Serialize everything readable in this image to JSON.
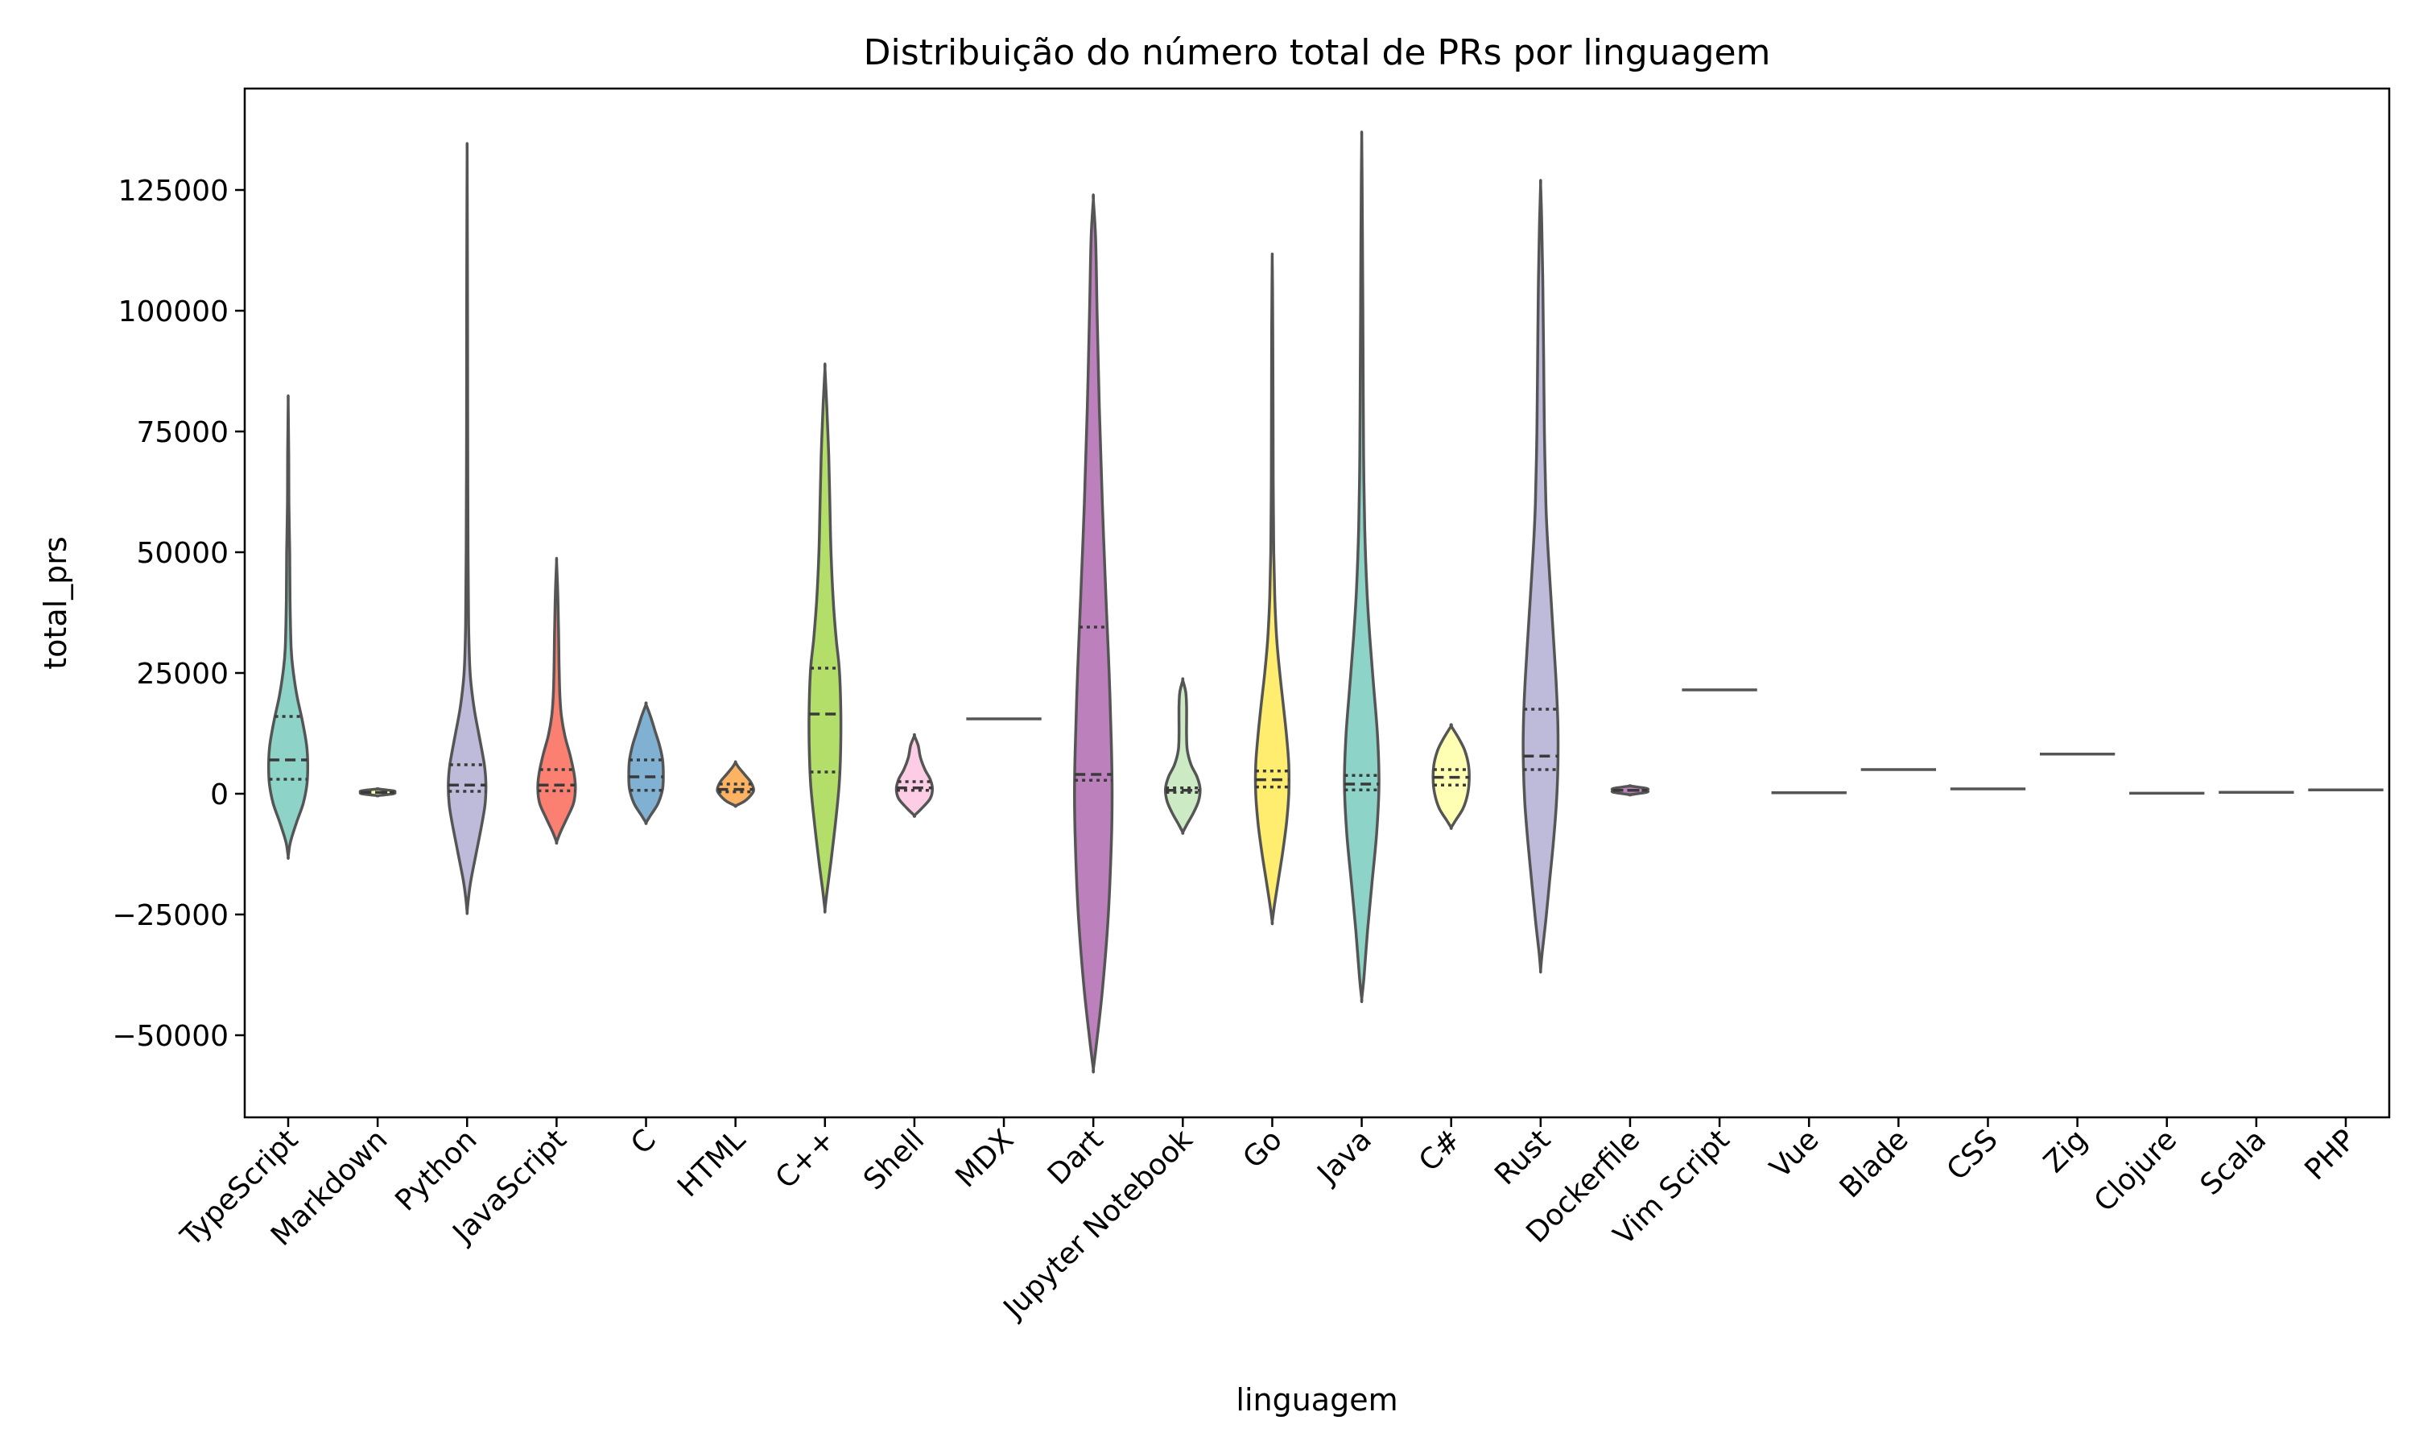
{
  "chart_data": {
    "type": "violin",
    "title": "Distribuição do número total de PRs por linguagem",
    "xlabel": "linguagem",
    "ylabel": "total_prs",
    "ylim": [
      -67000,
      146000
    ],
    "yticks": [
      -50000,
      -25000,
      0,
      25000,
      50000,
      75000,
      100000,
      125000
    ],
    "ytick_labels": [
      "−50000",
      "−25000",
      "0",
      "25000",
      "50000",
      "75000",
      "100000",
      "125000"
    ],
    "grid": false,
    "legend": "none",
    "categories": [
      "TypeScript",
      "Markdown",
      "Python",
      "JavaScript",
      "C",
      "HTML",
      "C++",
      "Shell",
      "MDX",
      "Dart",
      "Jupyter Notebook",
      "Go",
      "Java",
      "C#",
      "Rust",
      "Dockerfile",
      "Vim Script",
      "Vue",
      "Blade",
      "CSS",
      "Zig",
      "Clojure",
      "Scala",
      "PHP"
    ],
    "violins": [
      {
        "category": "TypeScript",
        "color": "#8dd3c7",
        "q1": 3000,
        "median": 7000,
        "q3": 16000,
        "profile": [
          [
            -13000,
            0
          ],
          [
            -10000,
            0.06
          ],
          [
            -6000,
            0.22
          ],
          [
            -2000,
            0.4
          ],
          [
            2000,
            0.5
          ],
          [
            6000,
            0.52
          ],
          [
            10000,
            0.49
          ],
          [
            15000,
            0.38
          ],
          [
            20000,
            0.24
          ],
          [
            25000,
            0.14
          ],
          [
            30000,
            0.08
          ],
          [
            40000,
            0.05
          ],
          [
            50000,
            0.04
          ],
          [
            60000,
            0.02
          ],
          [
            70000,
            0.015
          ],
          [
            81000,
            0
          ]
        ]
      },
      {
        "category": "Markdown",
        "color": "#ffffb3",
        "q1": 300,
        "median": 300,
        "q3": 300,
        "profile": [
          [
            -400,
            0
          ],
          [
            0,
            0.42
          ],
          [
            300,
            0.45
          ],
          [
            600,
            0.42
          ],
          [
            1000,
            0
          ]
        ]
      },
      {
        "category": "Python",
        "color": "#bebada",
        "q1": 500,
        "median": 1800,
        "q3": 6000,
        "profile": [
          [
            -24500,
            0
          ],
          [
            -22000,
            0.03
          ],
          [
            -18000,
            0.1
          ],
          [
            -12000,
            0.25
          ],
          [
            -6000,
            0.4
          ],
          [
            -2000,
            0.48
          ],
          [
            2000,
            0.5
          ],
          [
            6000,
            0.46
          ],
          [
            12000,
            0.32
          ],
          [
            18000,
            0.18
          ],
          [
            25000,
            0.08
          ],
          [
            35000,
            0.04
          ],
          [
            50000,
            0.025
          ],
          [
            75000,
            0.015
          ],
          [
            100000,
            0.012
          ],
          [
            120000,
            0.006
          ],
          [
            133000,
            0
          ]
        ]
      },
      {
        "category": "JavaScript",
        "color": "#fb8072",
        "q1": 600,
        "median": 1800,
        "q3": 5000,
        "profile": [
          [
            -10000,
            0
          ],
          [
            -8000,
            0.1
          ],
          [
            -5000,
            0.28
          ],
          [
            -2000,
            0.45
          ],
          [
            1000,
            0.5
          ],
          [
            4000,
            0.47
          ],
          [
            8000,
            0.36
          ],
          [
            12000,
            0.22
          ],
          [
            16000,
            0.13
          ],
          [
            20000,
            0.09
          ],
          [
            25000,
            0.07
          ],
          [
            30000,
            0.06
          ],
          [
            35000,
            0.05
          ],
          [
            42000,
            0.03
          ],
          [
            48000,
            0
          ]
        ]
      },
      {
        "category": "C",
        "color": "#80b1d3",
        "q1": 700,
        "median": 3500,
        "q3": 7000,
        "profile": [
          [
            -6000,
            0
          ],
          [
            -4500,
            0.12
          ],
          [
            -2000,
            0.32
          ],
          [
            1000,
            0.44
          ],
          [
            4000,
            0.46
          ],
          [
            7000,
            0.44
          ],
          [
            10000,
            0.36
          ],
          [
            13000,
            0.24
          ],
          [
            16000,
            0.12
          ],
          [
            18500,
            0
          ]
        ]
      },
      {
        "category": "HTML",
        "color": "#fdb462",
        "q1": 400,
        "median": 900,
        "q3": 2000,
        "profile": [
          [
            -2500,
            0
          ],
          [
            -1500,
            0.25
          ],
          [
            0,
            0.44
          ],
          [
            1000,
            0.48
          ],
          [
            2500,
            0.4
          ],
          [
            4000,
            0.24
          ],
          [
            5500,
            0.08
          ],
          [
            6500,
            0
          ]
        ]
      },
      {
        "category": "C++",
        "color": "#b3de69",
        "q1": 4500,
        "median": 16500,
        "q3": 26000,
        "profile": [
          [
            -24000,
            0
          ],
          [
            -20000,
            0.06
          ],
          [
            -14000,
            0.16
          ],
          [
            -6000,
            0.28
          ],
          [
            2000,
            0.38
          ],
          [
            10000,
            0.42
          ],
          [
            18000,
            0.42
          ],
          [
            26000,
            0.38
          ],
          [
            32000,
            0.3
          ],
          [
            40000,
            0.22
          ],
          [
            50000,
            0.16
          ],
          [
            60000,
            0.13
          ],
          [
            70000,
            0.1
          ],
          [
            80000,
            0.05
          ],
          [
            88000,
            0
          ]
        ]
      },
      {
        "category": "Shell",
        "color": "#fccde5",
        "q1": 700,
        "median": 1200,
        "q3": 2500,
        "profile": [
          [
            -4500,
            0
          ],
          [
            -3000,
            0.2
          ],
          [
            -1000,
            0.42
          ],
          [
            1000,
            0.48
          ],
          [
            3000,
            0.42
          ],
          [
            5000,
            0.28
          ],
          [
            7500,
            0.16
          ],
          [
            10000,
            0.1
          ],
          [
            12000,
            0
          ]
        ]
      },
      {
        "category": "MDX",
        "color": "#d9d9d9",
        "q1": 15500,
        "median": 15500,
        "q3": 15500,
        "profile": []
      },
      {
        "category": "Dart",
        "color": "#bc80bd",
        "q1": 2800,
        "median": 4000,
        "q3": 34500,
        "profile": [
          [
            -57000,
            0
          ],
          [
            -52000,
            0.08
          ],
          [
            -40000,
            0.25
          ],
          [
            -25000,
            0.4
          ],
          [
            -10000,
            0.48
          ],
          [
            0,
            0.5
          ],
          [
            10000,
            0.48
          ],
          [
            25000,
            0.42
          ],
          [
            40000,
            0.34
          ],
          [
            60000,
            0.24
          ],
          [
            80000,
            0.16
          ],
          [
            100000,
            0.1
          ],
          [
            115000,
            0.06
          ],
          [
            123000,
            0
          ]
        ]
      },
      {
        "category": "Jupyter Notebook",
        "color": "#ccebc5",
        "q1": 300,
        "median": 700,
        "q3": 1200,
        "profile": [
          [
            -8000,
            0
          ],
          [
            -6500,
            0.1
          ],
          [
            -4000,
            0.28
          ],
          [
            -1500,
            0.42
          ],
          [
            1000,
            0.46
          ],
          [
            3500,
            0.38
          ],
          [
            6000,
            0.22
          ],
          [
            9000,
            0.12
          ],
          [
            12000,
            0.1
          ],
          [
            15000,
            0.1
          ],
          [
            18000,
            0.1
          ],
          [
            21000,
            0.08
          ],
          [
            23500,
            0
          ]
        ]
      },
      {
        "category": "Go",
        "color": "#ffed6f",
        "q1": 1400,
        "median": 2900,
        "q3": 4700,
        "profile": [
          [
            -26500,
            0
          ],
          [
            -23000,
            0.06
          ],
          [
            -18000,
            0.16
          ],
          [
            -12000,
            0.28
          ],
          [
            -6000,
            0.38
          ],
          [
            0,
            0.44
          ],
          [
            6000,
            0.44
          ],
          [
            12000,
            0.38
          ],
          [
            18000,
            0.3
          ],
          [
            25000,
            0.2
          ],
          [
            32000,
            0.12
          ],
          [
            40000,
            0.07
          ],
          [
            50000,
            0.04
          ],
          [
            65000,
            0.025
          ],
          [
            80000,
            0.02
          ],
          [
            95000,
            0.015
          ],
          [
            105000,
            0.008
          ],
          [
            111000,
            0
          ]
        ]
      },
      {
        "category": "Java",
        "color": "#8dd3c7",
        "q1": 800,
        "median": 2000,
        "q3": 3800,
        "profile": [
          [
            -42500,
            0
          ],
          [
            -38000,
            0.06
          ],
          [
            -28000,
            0.16
          ],
          [
            -18000,
            0.28
          ],
          [
            -8000,
            0.4
          ],
          [
            2000,
            0.46
          ],
          [
            12000,
            0.42
          ],
          [
            22000,
            0.32
          ],
          [
            32000,
            0.22
          ],
          [
            42000,
            0.14
          ],
          [
            55000,
            0.08
          ],
          [
            70000,
            0.05
          ],
          [
            85000,
            0.04
          ],
          [
            100000,
            0.03
          ],
          [
            115000,
            0.02
          ],
          [
            128000,
            0.01
          ],
          [
            136000,
            0
          ]
        ]
      },
      {
        "category": "C#",
        "color": "#ffffb3",
        "q1": 1800,
        "median": 3400,
        "q3": 5000,
        "profile": [
          [
            -7000,
            0
          ],
          [
            -5500,
            0.12
          ],
          [
            -3000,
            0.32
          ],
          [
            0,
            0.44
          ],
          [
            3000,
            0.48
          ],
          [
            6000,
            0.46
          ],
          [
            9000,
            0.36
          ],
          [
            11500,
            0.2
          ],
          [
            14000,
            0
          ]
        ]
      },
      {
        "category": "Rust",
        "color": "#bebada",
        "q1": 5000,
        "median": 7800,
        "q3": 17500,
        "profile": [
          [
            -36500,
            0
          ],
          [
            -33000,
            0.04
          ],
          [
            -26000,
            0.14
          ],
          [
            -18000,
            0.24
          ],
          [
            -10000,
            0.34
          ],
          [
            -2000,
            0.42
          ],
          [
            6000,
            0.46
          ],
          [
            14000,
            0.46
          ],
          [
            22000,
            0.42
          ],
          [
            30000,
            0.36
          ],
          [
            40000,
            0.28
          ],
          [
            50000,
            0.2
          ],
          [
            60000,
            0.14
          ],
          [
            75000,
            0.1
          ],
          [
            90000,
            0.08
          ],
          [
            105000,
            0.06
          ],
          [
            118000,
            0.03
          ],
          [
            126000,
            0
          ]
        ]
      },
      {
        "category": "Dockerfile",
        "color": "#bc80bd",
        "q1": 700,
        "median": 700,
        "q3": 700,
        "profile": [
          [
            -200,
            0
          ],
          [
            300,
            0.44
          ],
          [
            700,
            0.46
          ],
          [
            1100,
            0.44
          ],
          [
            1600,
            0
          ]
        ]
      },
      {
        "category": "Vim Script",
        "color": "#ccebc5",
        "q1": 21500,
        "median": 21500,
        "q3": 21500,
        "profile": []
      },
      {
        "category": "Vue",
        "color": "#ffed6f",
        "q1": 200,
        "median": 200,
        "q3": 200,
        "profile": []
      },
      {
        "category": "Blade",
        "color": "#8dd3c7",
        "q1": 5000,
        "median": 5000,
        "q3": 5000,
        "profile": []
      },
      {
        "category": "CSS",
        "color": "#ffffb3",
        "q1": 1000,
        "median": 1000,
        "q3": 1000,
        "profile": []
      },
      {
        "category": "Zig",
        "color": "#bebada",
        "q1": 8200,
        "median": 8200,
        "q3": 8200,
        "profile": []
      },
      {
        "category": "Clojure",
        "color": "#fb8072",
        "q1": 100,
        "median": 100,
        "q3": 100,
        "profile": []
      },
      {
        "category": "Scala",
        "color": "#80b1d3",
        "q1": 300,
        "median": 300,
        "q3": 300,
        "profile": []
      },
      {
        "category": "PHP",
        "color": "#fdb462",
        "q1": 800,
        "median": 800,
        "q3": 800,
        "profile": []
      }
    ]
  }
}
